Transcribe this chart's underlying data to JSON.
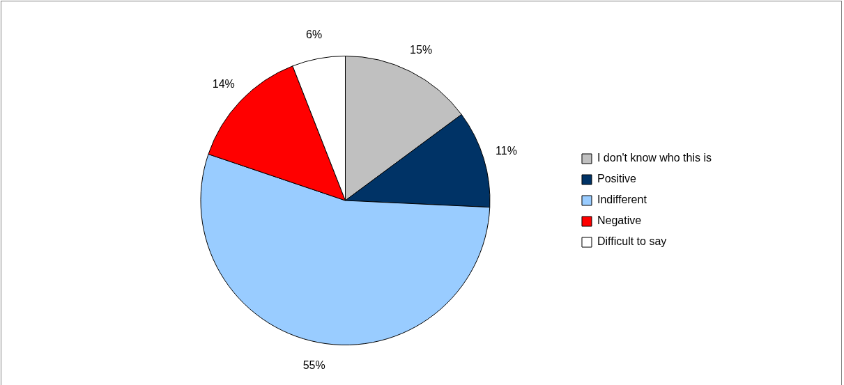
{
  "chart_data": {
    "type": "pie",
    "categories": [
      "I don't know who this is",
      "Positive",
      "Indifferent",
      "Negative",
      "Difficult to say"
    ],
    "values": [
      15,
      11,
      55,
      14,
      6
    ],
    "colors": [
      "#c0c0c0",
      "#003366",
      "#99ccff",
      "#ff0000",
      "#ffffff"
    ],
    "value_labels": [
      "15%",
      "11%",
      "55%",
      "14%",
      "6%"
    ],
    "legend": "right"
  }
}
